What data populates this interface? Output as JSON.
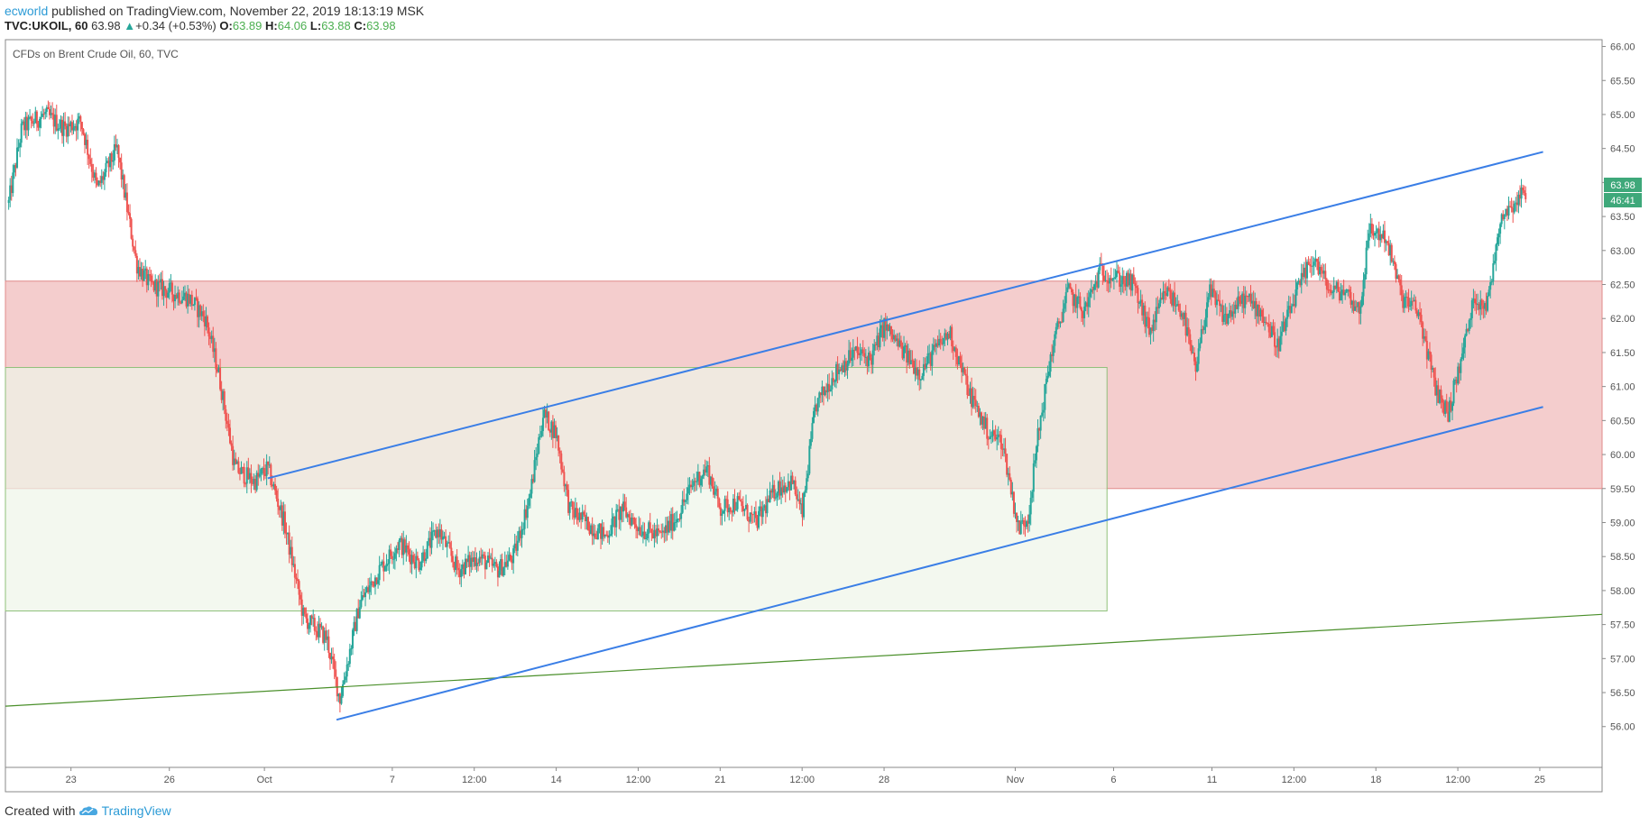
{
  "header": {
    "author": "ecworld",
    "published_text": "published on TradingView.com, November 22, 2019 18:13:19 MSK",
    "symbol": "TVC:UKOIL, 60",
    "last": "63.98",
    "change": "+0.34 (+0.53%)",
    "open_label": "O:",
    "open": "63.89",
    "high_label": "H:",
    "high": "64.06",
    "low_label": "L:",
    "low": "63.88",
    "close_label": "C:",
    "close": "63.98"
  },
  "footer": {
    "created_with": "Created with",
    "brand": "TradingView"
  },
  "colors": {
    "up": "#26a69a",
    "down": "#ef5350",
    "channel": "#3a7ee6",
    "long_trend": "#4a8f2a",
    "red_zone": "#f2c4c4",
    "green_zone": "#eef5e8",
    "price_tag": "#3ea87a"
  },
  "chart_data": {
    "type": "candlestick",
    "title": "CFDs on Brent Crude Oil, 60, TVC",
    "x_labels": [
      {
        "t": 1.0,
        "label": "23"
      },
      {
        "t": 4.0,
        "label": "26"
      },
      {
        "t": 6.9,
        "label": "Oct"
      },
      {
        "t": 10.8,
        "label": "7"
      },
      {
        "t": 13.3,
        "label": "12:00"
      },
      {
        "t": 15.8,
        "label": "14"
      },
      {
        "t": 18.3,
        "label": "12:00"
      },
      {
        "t": 20.8,
        "label": "21"
      },
      {
        "t": 23.3,
        "label": "12:00"
      },
      {
        "t": 25.8,
        "label": "28"
      },
      {
        "t": 29.8,
        "label": "Nov"
      },
      {
        "t": 32.8,
        "label": "6"
      },
      {
        "t": 35.8,
        "label": "11"
      },
      {
        "t": 38.3,
        "label": "12:00"
      },
      {
        "t": 40.8,
        "label": "18"
      },
      {
        "t": 43.3,
        "label": "12:00"
      },
      {
        "t": 45.8,
        "label": "25"
      }
    ],
    "x_range": [
      -1.0,
      47.7
    ],
    "y_range": [
      55.4,
      66.1
    ],
    "y_ticks": [
      "56.00",
      "56.50",
      "57.00",
      "57.50",
      "58.00",
      "58.50",
      "59.00",
      "59.50",
      "60.00",
      "60.50",
      "61.00",
      "61.50",
      "62.00",
      "62.50",
      "63.00",
      "63.50",
      "64.00",
      "64.50",
      "65.00",
      "65.50",
      "66.00"
    ],
    "last_price": "63.98",
    "countdown": "46:41",
    "path": [
      [
        -0.9,
        63.7
      ],
      [
        -0.5,
        64.8
      ],
      [
        0.2,
        65.0
      ],
      [
        0.8,
        64.8
      ],
      [
        1.3,
        64.9
      ],
      [
        1.8,
        63.9
      ],
      [
        2.4,
        64.5
      ],
      [
        3.0,
        62.8
      ],
      [
        3.4,
        62.5
      ],
      [
        4.0,
        62.4
      ],
      [
        4.6,
        62.3
      ],
      [
        5.1,
        62.0
      ],
      [
        5.5,
        61.2
      ],
      [
        6.0,
        59.8
      ],
      [
        6.6,
        59.6
      ],
      [
        7.0,
        59.8
      ],
      [
        7.5,
        59.0
      ],
      [
        8.1,
        57.6
      ],
      [
        8.8,
        57.3
      ],
      [
        9.2,
        56.4
      ],
      [
        9.8,
        57.8
      ],
      [
        10.4,
        58.3
      ],
      [
        11.0,
        58.7
      ],
      [
        11.6,
        58.4
      ],
      [
        12.2,
        58.9
      ],
      [
        12.8,
        58.3
      ],
      [
        13.4,
        58.5
      ],
      [
        14.0,
        58.3
      ],
      [
        14.5,
        58.5
      ],
      [
        15.0,
        59.4
      ],
      [
        15.4,
        60.6
      ],
      [
        15.8,
        60.3
      ],
      [
        16.2,
        59.2
      ],
      [
        16.7,
        59.0
      ],
      [
        17.3,
        58.8
      ],
      [
        17.8,
        59.2
      ],
      [
        18.4,
        58.9
      ],
      [
        19.0,
        58.8
      ],
      [
        19.5,
        59.1
      ],
      [
        20.0,
        59.6
      ],
      [
        20.4,
        59.8
      ],
      [
        20.8,
        59.2
      ],
      [
        21.3,
        59.3
      ],
      [
        21.9,
        59.0
      ],
      [
        22.5,
        59.5
      ],
      [
        23.0,
        59.6
      ],
      [
        23.3,
        59.1
      ],
      [
        23.7,
        60.7
      ],
      [
        24.3,
        61.2
      ],
      [
        24.9,
        61.5
      ],
      [
        25.4,
        61.4
      ],
      [
        25.8,
        61.9
      ],
      [
        26.4,
        61.5
      ],
      [
        26.9,
        61.2
      ],
      [
        27.3,
        61.5
      ],
      [
        27.8,
        61.8
      ],
      [
        28.4,
        60.9
      ],
      [
        29.0,
        60.3
      ],
      [
        29.4,
        60.2
      ],
      [
        29.9,
        58.9
      ],
      [
        30.2,
        59.1
      ],
      [
        30.5,
        60.3
      ],
      [
        30.9,
        61.5
      ],
      [
        31.4,
        62.4
      ],
      [
        31.9,
        62.1
      ],
      [
        32.4,
        62.7
      ],
      [
        32.9,
        62.6
      ],
      [
        33.4,
        62.5
      ],
      [
        33.9,
        61.8
      ],
      [
        34.4,
        62.4
      ],
      [
        34.9,
        62.1
      ],
      [
        35.3,
        61.2
      ],
      [
        35.7,
        62.4
      ],
      [
        36.2,
        62.0
      ],
      [
        36.8,
        62.3
      ],
      [
        37.3,
        62.1
      ],
      [
        37.8,
        61.6
      ],
      [
        38.4,
        62.4
      ],
      [
        38.9,
        62.9
      ],
      [
        39.4,
        62.4
      ],
      [
        39.9,
        62.4
      ],
      [
        40.3,
        62.1
      ],
      [
        40.6,
        63.3
      ],
      [
        41.1,
        63.2
      ],
      [
        41.6,
        62.3
      ],
      [
        42.1,
        62.1
      ],
      [
        42.6,
        61.0
      ],
      [
        43.0,
        60.6
      ],
      [
        43.4,
        61.4
      ],
      [
        43.8,
        62.3
      ],
      [
        44.2,
        62.2
      ],
      [
        44.6,
        63.5
      ],
      [
        45.0,
        63.7
      ],
      [
        45.4,
        63.9
      ]
    ],
    "drawings": {
      "upper_channel": {
        "from": [
          7.0,
          59.65
        ],
        "to": [
          45.9,
          64.45
        ]
      },
      "lower_channel": {
        "from": [
          9.1,
          56.1
        ],
        "to": [
          45.9,
          60.7
        ]
      },
      "long_trendline": {
        "from": [
          -1.0,
          56.3
        ],
        "to": [
          47.7,
          57.65
        ]
      },
      "red_zone": {
        "x_from": -1.0,
        "x_to": 47.7,
        "y_from": 59.5,
        "y_to": 62.55
      },
      "green_zone": {
        "x_from": -1.0,
        "x_to": 32.6,
        "y_from": 57.7,
        "y_to": 61.28
      }
    }
  }
}
